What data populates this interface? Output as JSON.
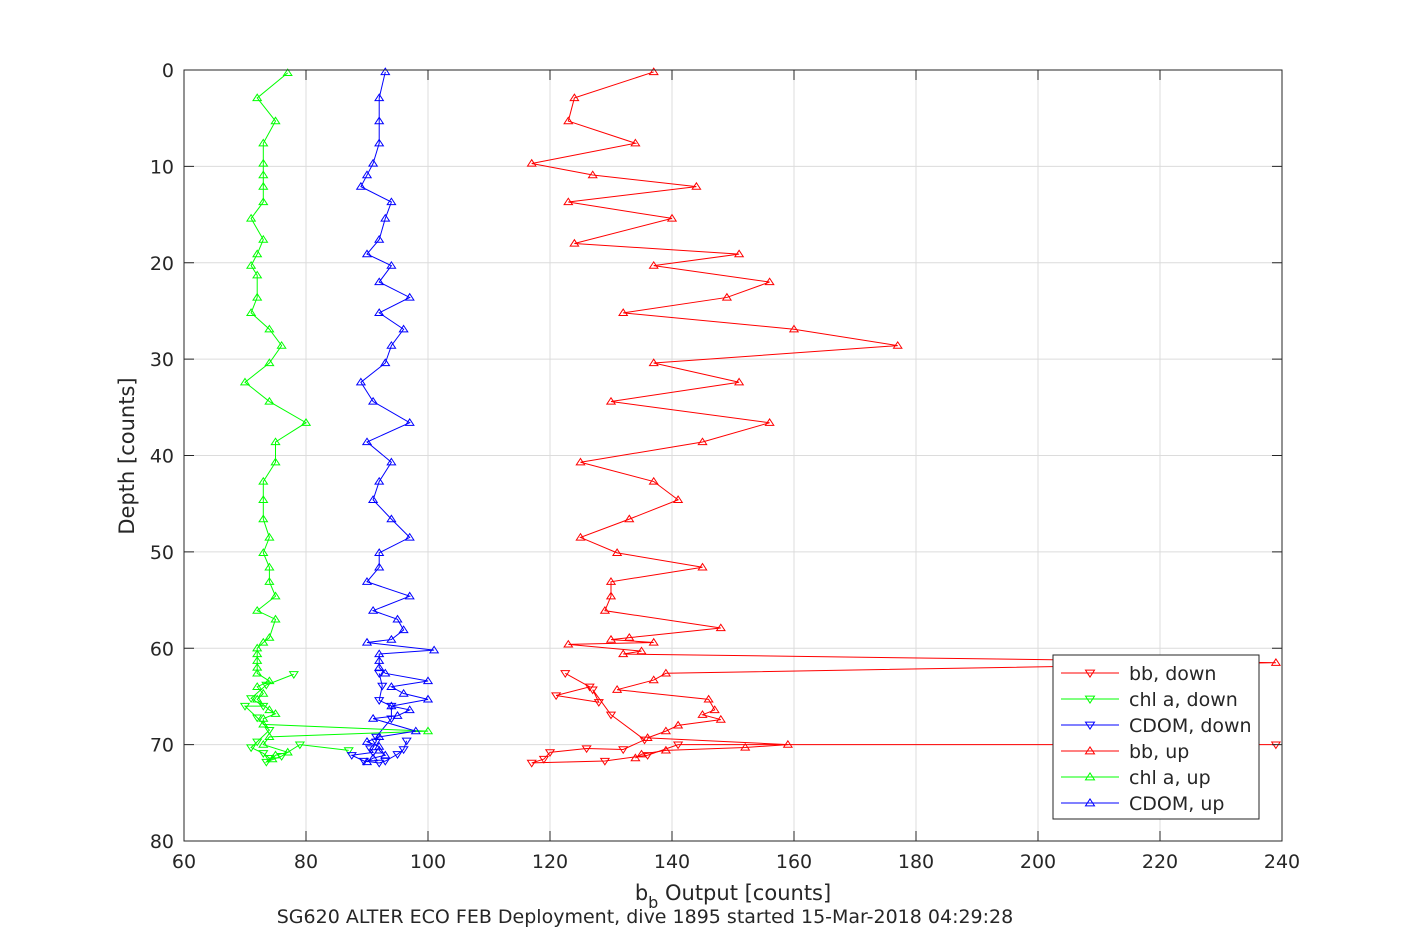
{
  "chart_data": {
    "type": "line",
    "xlabel_main": "b",
    "xlabel_sub": "b",
    "xlabel_rest": " Output [counts]",
    "ylabel": "Depth [counts]",
    "caption": "SG620 ALTER ECO FEB Deployment, dive 1895 started 15-Mar-2018 04:29:28",
    "xlim": [
      60,
      240
    ],
    "ylim": [
      0,
      80
    ],
    "y_reversed": true,
    "grid": true,
    "legend_position": "bottom-right",
    "xticks": [
      "60",
      "80",
      "100",
      "120",
      "140",
      "160",
      "180",
      "200",
      "220",
      "240"
    ],
    "yticks": [
      "0",
      "10",
      "20",
      "30",
      "40",
      "50",
      "60",
      "70",
      "80"
    ],
    "series": [
      {
        "name": "bb, down",
        "color": "#ff0000",
        "marker": "triangle-down",
        "points": [
          [
            122.5,
            62.6
          ],
          [
            126.5,
            64.0
          ],
          [
            121,
            64.9
          ],
          [
            128,
            65.6
          ],
          [
            127,
            64.3
          ],
          [
            130,
            66.9
          ],
          [
            135.5,
            69.5
          ],
          [
            132,
            70.5
          ],
          [
            126,
            70.4
          ],
          [
            120,
            70.8
          ],
          [
            119,
            71.5
          ],
          [
            117,
            71.9
          ],
          [
            129,
            71.7
          ],
          [
            136,
            71.1
          ],
          [
            141,
            70.0
          ],
          [
            239,
            70.0
          ]
        ]
      },
      {
        "name": "chl a, down",
        "color": "#00ff00",
        "marker": "triangle-down",
        "points": [
          [
            78,
            62.7
          ],
          [
            73.5,
            63.8
          ],
          [
            71,
            65.2
          ],
          [
            73,
            66.0
          ],
          [
            70,
            66.0
          ],
          [
            72,
            67.2
          ],
          [
            74,
            68.5
          ],
          [
            72,
            69.7
          ],
          [
            71,
            70.3
          ],
          [
            73,
            70.9
          ],
          [
            74,
            71.4
          ],
          [
            73.5,
            71.8
          ],
          [
            76,
            71.2
          ],
          [
            79,
            70.0
          ],
          [
            87,
            70.6
          ]
        ]
      },
      {
        "name": "CDOM, down",
        "color": "#0000ff",
        "marker": "triangle-down",
        "points": [
          [
            92,
            62.6
          ],
          [
            92.5,
            63.9
          ],
          [
            92,
            65.4
          ],
          [
            94,
            66.0
          ],
          [
            94,
            67.3
          ],
          [
            91.5,
            69.2
          ],
          [
            91.5,
            69.7
          ],
          [
            90.5,
            70.4
          ],
          [
            91,
            70.8
          ],
          [
            87.5,
            71.1
          ],
          [
            89.5,
            71.7
          ],
          [
            92,
            71.9
          ],
          [
            93,
            71.7
          ],
          [
            95,
            71.0
          ],
          [
            96,
            70.5
          ],
          [
            96.5,
            69.6
          ]
        ]
      },
      {
        "name": "bb, up",
        "color": "#ff0000",
        "marker": "triangle-up",
        "points": [
          [
            137,
            0.2
          ],
          [
            124,
            2.9
          ],
          [
            123,
            5.3
          ],
          [
            134,
            7.6
          ],
          [
            117,
            9.7
          ],
          [
            127,
            10.9
          ],
          [
            144,
            12.1
          ],
          [
            123,
            13.7
          ],
          [
            140,
            15.4
          ],
          [
            124,
            18.0
          ],
          [
            151,
            19.1
          ],
          [
            137,
            20.3
          ],
          [
            156,
            22.0
          ],
          [
            149,
            23.6
          ],
          [
            132,
            25.2
          ],
          [
            160,
            26.9
          ],
          [
            177,
            28.6
          ],
          [
            137,
            30.4
          ],
          [
            151,
            32.4
          ],
          [
            130,
            34.4
          ],
          [
            156,
            36.6
          ],
          [
            145,
            38.6
          ],
          [
            125,
            40.7
          ],
          [
            137,
            42.7
          ],
          [
            141,
            44.6
          ],
          [
            133,
            46.6
          ],
          [
            125,
            48.5
          ],
          [
            131,
            50.1
          ],
          [
            145,
            51.6
          ],
          [
            130,
            53.1
          ],
          [
            130,
            54.6
          ],
          [
            129,
            56.1
          ],
          [
            148,
            57.9
          ],
          [
            133,
            58.9
          ],
          [
            130,
            59.1
          ],
          [
            137,
            59.4
          ],
          [
            123,
            59.6
          ],
          [
            135,
            60.3
          ],
          [
            132,
            60.6
          ],
          [
            239,
            61.5
          ],
          [
            139,
            62.6
          ],
          [
            137,
            63.3
          ],
          [
            131,
            64.3
          ],
          [
            146,
            65.3
          ],
          [
            147,
            66.4
          ],
          [
            145,
            66.9
          ],
          [
            148,
            67.4
          ],
          [
            141,
            68.0
          ],
          [
            139,
            68.6
          ],
          [
            136,
            69.3
          ],
          [
            159,
            70.0
          ],
          [
            152,
            70.3
          ],
          [
            139,
            70.6
          ],
          [
            135,
            71.0
          ],
          [
            134,
            71.4
          ]
        ]
      },
      {
        "name": "chl a, up",
        "color": "#00ff00",
        "marker": "triangle-up",
        "points": [
          [
            77,
            0.3
          ],
          [
            72,
            2.9
          ],
          [
            75,
            5.3
          ],
          [
            73,
            7.6
          ],
          [
            73,
            9.7
          ],
          [
            73,
            10.9
          ],
          [
            73,
            12.1
          ],
          [
            73,
            13.7
          ],
          [
            71,
            15.4
          ],
          [
            73,
            17.6
          ],
          [
            72,
            19.1
          ],
          [
            71,
            20.3
          ],
          [
            72,
            21.3
          ],
          [
            72,
            23.6
          ],
          [
            71,
            25.2
          ],
          [
            74,
            26.9
          ],
          [
            76,
            28.6
          ],
          [
            74,
            30.4
          ],
          [
            70,
            32.4
          ],
          [
            74,
            34.4
          ],
          [
            80,
            36.6
          ],
          [
            75,
            38.6
          ],
          [
            75,
            40.7
          ],
          [
            73,
            42.7
          ],
          [
            73,
            44.6
          ],
          [
            73,
            46.6
          ],
          [
            74,
            48.5
          ],
          [
            73,
            50.1
          ],
          [
            74,
            51.6
          ],
          [
            74,
            53.1
          ],
          [
            75,
            54.6
          ],
          [
            72,
            56.1
          ],
          [
            75,
            57.0
          ],
          [
            74,
            58.9
          ],
          [
            73,
            59.4
          ],
          [
            72,
            60.0
          ],
          [
            72,
            60.6
          ],
          [
            72,
            61.3
          ],
          [
            72,
            62.0
          ],
          [
            72,
            62.6
          ],
          [
            74,
            63.4
          ],
          [
            72,
            64.0
          ],
          [
            73,
            64.7
          ],
          [
            72,
            65.3
          ],
          [
            74,
            66.4
          ],
          [
            75,
            66.8
          ],
          [
            73,
            67.3
          ],
          [
            73,
            67.9
          ],
          [
            100,
            68.6
          ],
          [
            74,
            69.2
          ],
          [
            73,
            70.0
          ],
          [
            77,
            70.8
          ],
          [
            75,
            71.1
          ],
          [
            74.5,
            71.5
          ]
        ]
      },
      {
        "name": "CDOM, up",
        "color": "#0000ff",
        "marker": "triangle-up",
        "points": [
          [
            93,
            0.2
          ],
          [
            92,
            2.9
          ],
          [
            92,
            5.3
          ],
          [
            92,
            7.6
          ],
          [
            91,
            9.7
          ],
          [
            90,
            10.9
          ],
          [
            89,
            12.1
          ],
          [
            94,
            13.7
          ],
          [
            93,
            15.4
          ],
          [
            92,
            17.6
          ],
          [
            90,
            19.1
          ],
          [
            94,
            20.3
          ],
          [
            92,
            22.0
          ],
          [
            97,
            23.6
          ],
          [
            92,
            25.2
          ],
          [
            96,
            26.9
          ],
          [
            94,
            28.6
          ],
          [
            93,
            30.4
          ],
          [
            89,
            32.4
          ],
          [
            91,
            34.4
          ],
          [
            97,
            36.6
          ],
          [
            90,
            38.6
          ],
          [
            94,
            40.7
          ],
          [
            92,
            42.7
          ],
          [
            91,
            44.6
          ],
          [
            94,
            46.6
          ],
          [
            97,
            48.5
          ],
          [
            92,
            50.1
          ],
          [
            92,
            51.6
          ],
          [
            90,
            53.1
          ],
          [
            97,
            54.6
          ],
          [
            91,
            56.1
          ],
          [
            95,
            57.0
          ],
          [
            96,
            58.1
          ],
          [
            94,
            59.1
          ],
          [
            90,
            59.4
          ],
          [
            101,
            60.2
          ],
          [
            92,
            60.6
          ],
          [
            92,
            61.3
          ],
          [
            92,
            62.0
          ],
          [
            93,
            62.6
          ],
          [
            100,
            63.4
          ],
          [
            94,
            64.0
          ],
          [
            96,
            64.7
          ],
          [
            100,
            65.3
          ],
          [
            94,
            66.0
          ],
          [
            97,
            66.4
          ],
          [
            95,
            67.0
          ],
          [
            91,
            67.3
          ],
          [
            98,
            68.6
          ],
          [
            92,
            69.2
          ],
          [
            90,
            69.7
          ],
          [
            92,
            70.2
          ],
          [
            92,
            70.6
          ],
          [
            93,
            71.1
          ],
          [
            91,
            71.4
          ],
          [
            90,
            71.8
          ]
        ]
      }
    ]
  }
}
